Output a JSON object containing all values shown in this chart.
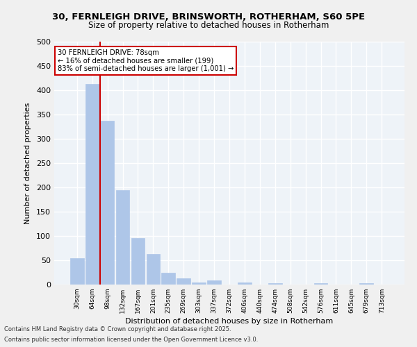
{
  "title_line1": "30, FERNLEIGH DRIVE, BRINSWORTH, ROTHERHAM, S60 5PE",
  "title_line2": "Size of property relative to detached houses in Rotherham",
  "xlabel": "Distribution of detached houses by size in Rotherham",
  "ylabel": "Number of detached properties",
  "categories": [
    "30sqm",
    "64sqm",
    "98sqm",
    "132sqm",
    "167sqm",
    "201sqm",
    "235sqm",
    "269sqm",
    "303sqm",
    "337sqm",
    "372sqm",
    "406sqm",
    "440sqm",
    "474sqm",
    "508sqm",
    "542sqm",
    "576sqm",
    "611sqm",
    "645sqm",
    "679sqm",
    "713sqm"
  ],
  "values": [
    54,
    413,
    337,
    194,
    96,
    63,
    25,
    13,
    5,
    9,
    0,
    5,
    0,
    3,
    0,
    0,
    3,
    0,
    0,
    3,
    0
  ],
  "bar_color": "#aec6e8",
  "bar_edge_color": "#aec6e8",
  "vline_x": 1.5,
  "vline_color": "#cc0000",
  "annotation_text": "30 FERNLEIGH DRIVE: 78sqm\n← 16% of detached houses are smaller (199)\n83% of semi-detached houses are larger (1,001) →",
  "annotation_box_color": "#ffffff",
  "annotation_box_edge": "#cc0000",
  "background_color": "#eef3f8",
  "grid_color": "#ffffff",
  "footer_line1": "Contains HM Land Registry data © Crown copyright and database right 2025.",
  "footer_line2": "Contains public sector information licensed under the Open Government Licence v3.0.",
  "ylim": [
    0,
    500
  ],
  "yticks": [
    0,
    50,
    100,
    150,
    200,
    250,
    300,
    350,
    400,
    450,
    500
  ]
}
